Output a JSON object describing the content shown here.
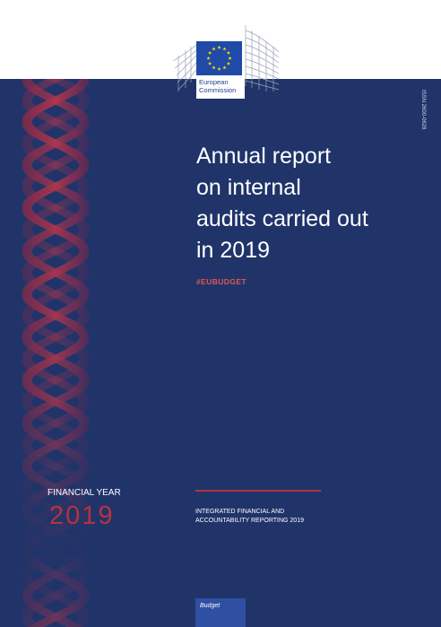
{
  "logo": {
    "line1": "European",
    "line2": "Commission"
  },
  "doc_code": "ISSN 2600-0628",
  "title_lines": [
    "Annual report",
    "on internal",
    "audits carried out",
    "in 2019"
  ],
  "hashtag": "#EUBUDGET",
  "financial_year": {
    "label": "FINANCIAL YEAR",
    "year": "2019"
  },
  "reporting_lines": [
    "INTEGRATED FINANCIAL AND",
    "ACCOUNTABILITY REPORTING 2019"
  ],
  "budget_tab": "Budget",
  "colors": {
    "cover_blue": "#20346a",
    "accent_red": "#b4333f",
    "hashtag_orange": "#e2584f",
    "eu_flag_blue": "#1f4aa8",
    "eu_star_yellow": "#ffdd00"
  }
}
